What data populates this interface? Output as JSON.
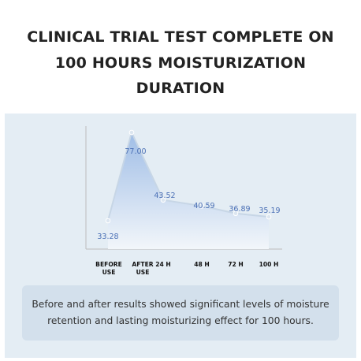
{
  "header": {
    "title_lines": [
      "CLINICAL TRIAL TEST COMPLETE ON",
      "100 HOURS MOISTURIZATION",
      "DURATION"
    ]
  },
  "chart_data": {
    "type": "area",
    "categories": [
      [
        "BEFORE",
        "USE"
      ],
      [
        "AFTER",
        "USE"
      ],
      [
        "24 H"
      ],
      [
        "48 H"
      ],
      [
        "72 H"
      ],
      [
        "100 H"
      ]
    ],
    "values": [
      33.28,
      77.0,
      43.52,
      40.59,
      36.89,
      35.19
    ],
    "value_labels": [
      "33.28",
      "77.00",
      "43.52",
      "40.59",
      "36.89",
      "35.19"
    ],
    "ylim": [
      0,
      100
    ],
    "grid": false,
    "title": "",
    "xlabel": "",
    "ylabel": "",
    "colors": {
      "line": "#c7d6e6",
      "point": "#dce6f0",
      "fill_top": "#9fbde6",
      "fill_bottom": "#f2f6fa",
      "label": "#4a6fb5",
      "axis": "#bcbcbc",
      "tick_text": "#111111"
    }
  },
  "caption": {
    "text_lines": [
      "Before and after results showed significant levels of moisture",
      "retention and  lasting moisturizing effect for 100 hours."
    ]
  }
}
